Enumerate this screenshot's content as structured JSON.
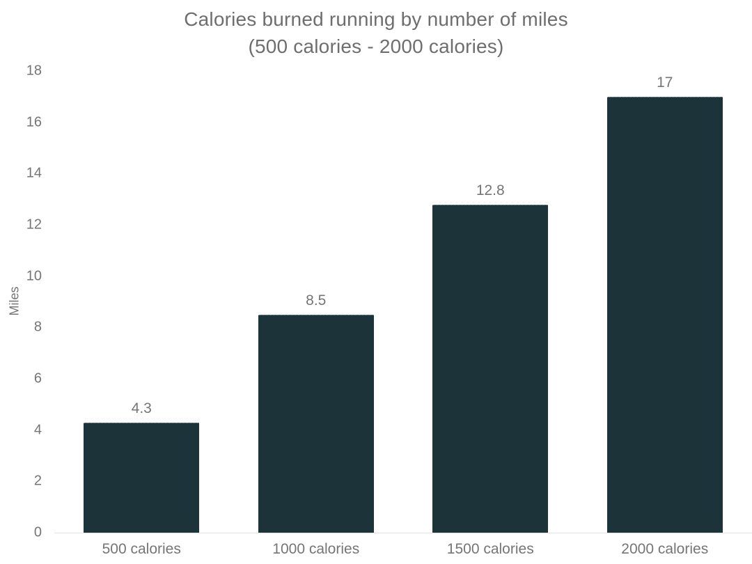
{
  "chart_data": {
    "type": "bar",
    "title_line1": "Calories burned running by number of miles",
    "title_line2": "(500 calories - 2000 calories)",
    "categories": [
      "500 calories",
      "1000 calories",
      "1500 calories",
      "2000 calories"
    ],
    "values": [
      4.3,
      8.5,
      12.8,
      17
    ],
    "value_labels": [
      "4.3",
      "8.5",
      "12.8",
      "17"
    ],
    "xlabel": "",
    "ylabel": "Miles",
    "ylim": [
      0,
      18
    ],
    "yticks": [
      0,
      2,
      4,
      6,
      8,
      10,
      12,
      14,
      16,
      18
    ],
    "grid": false,
    "legend": "none",
    "colors": {
      "bar": "#1c333a",
      "text": "#757575",
      "title_text": "#6e6e6e",
      "axis_line": "#e2e2e2",
      "background": "#ffffff"
    }
  }
}
